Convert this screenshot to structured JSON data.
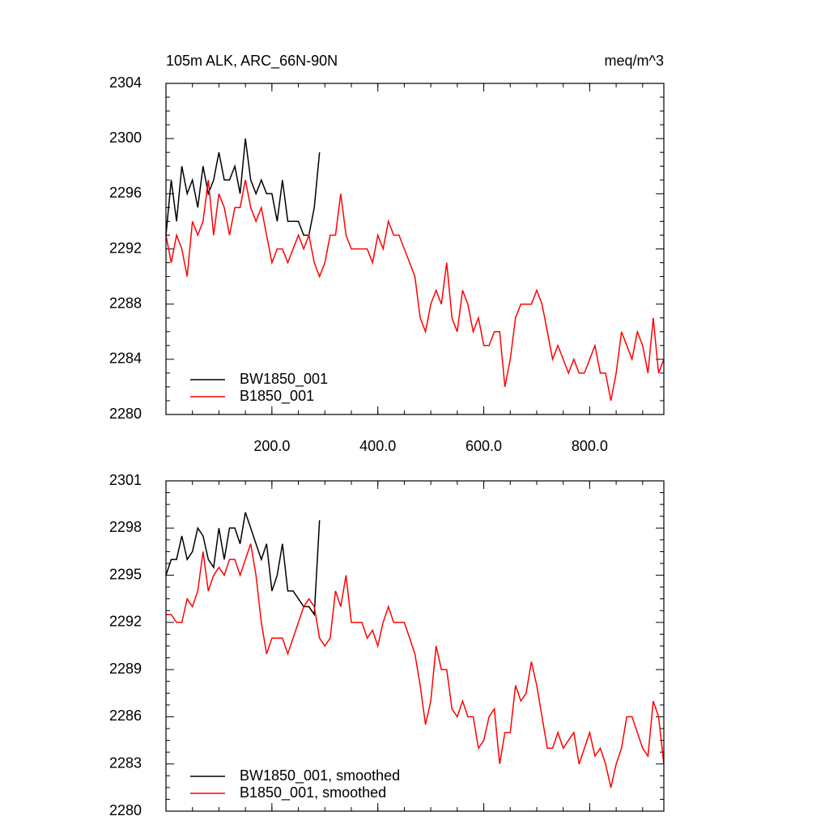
{
  "chart_data": [
    {
      "type": "line",
      "title": "105m ALK, ARC_66N-90N",
      "subtitle": "meq/m^3",
      "xlim": [
        0,
        940
      ],
      "ylim": [
        2280,
        2304
      ],
      "xticks": [
        {
          "value": 200,
          "label": "200.0"
        },
        {
          "value": 400,
          "label": "400.0"
        },
        {
          "value": 600,
          "label": "600.0"
        },
        {
          "value": 800,
          "label": "800.0"
        }
      ],
      "yticks": [
        2280,
        2284,
        2288,
        2292,
        2296,
        2300,
        2304
      ],
      "legend": "lower left",
      "series": [
        {
          "name": "BW1850_001",
          "color": "#000000",
          "x": [
            0,
            10,
            20,
            30,
            40,
            50,
            60,
            70,
            80,
            90,
            100,
            110,
            120,
            130,
            140,
            150,
            160,
            170,
            180,
            190,
            200,
            210,
            220,
            230,
            240,
            250,
            260,
            270,
            280,
            290
          ],
          "values": [
            2293,
            2297,
            2294,
            2298,
            2296,
            2297,
            2295,
            2298,
            2296,
            2297,
            2299,
            2297,
            2297,
            2298,
            2296,
            2300,
            2297,
            2296,
            2297,
            2296,
            2296,
            2294,
            2297,
            2294,
            2294,
            2294,
            2293,
            2293,
            2295,
            2299
          ]
        },
        {
          "name": "B1850_001",
          "color": "#ff0000",
          "x": [
            0,
            10,
            20,
            30,
            40,
            50,
            60,
            70,
            80,
            90,
            100,
            110,
            120,
            130,
            140,
            150,
            160,
            170,
            180,
            190,
            200,
            210,
            220,
            230,
            240,
            250,
            260,
            270,
            280,
            290,
            300,
            310,
            320,
            330,
            340,
            350,
            360,
            370,
            380,
            390,
            400,
            410,
            420,
            430,
            440,
            450,
            460,
            470,
            480,
            490,
            500,
            510,
            520,
            530,
            540,
            550,
            560,
            570,
            580,
            590,
            600,
            610,
            620,
            630,
            640,
            650,
            660,
            670,
            680,
            690,
            700,
            710,
            720,
            730,
            740,
            750,
            760,
            770,
            780,
            790,
            800,
            810,
            820,
            830,
            840,
            850,
            860,
            870,
            880,
            890,
            900,
            910,
            920,
            930,
            940
          ],
          "values": [
            2293,
            2291,
            2293,
            2292,
            2290,
            2294,
            2293,
            2294,
            2297,
            2293,
            2296,
            2295,
            2293,
            2295,
            2295,
            2297,
            2295,
            2294,
            2295,
            2293,
            2291,
            2292,
            2292,
            2291,
            2292,
            2293,
            2292,
            2293,
            2291,
            2290,
            2291,
            2293,
            2293,
            2296,
            2293,
            2292,
            2292,
            2292,
            2292,
            2291,
            2293,
            2292,
            2294,
            2293,
            2293,
            2292,
            2291,
            2290,
            2287,
            2286,
            2288,
            2289,
            2288,
            2291,
            2287,
            2286,
            2289,
            2288,
            2286,
            2287,
            2285,
            2285,
            2286,
            2286,
            2282,
            2284,
            2287,
            2288,
            2288,
            2288,
            2289,
            2288,
            2286,
            2284,
            2285,
            2284,
            2283,
            2284,
            2283,
            2283,
            2284,
            2285,
            2283,
            2283,
            2281,
            2283,
            2286,
            2285,
            2284,
            2286,
            2285,
            2283,
            2287,
            2283,
            2284
          ]
        }
      ]
    },
    {
      "type": "line",
      "xlim": [
        0,
        940
      ],
      "ylim": [
        2280,
        2301
      ],
      "xticks": [
        200,
        400,
        600,
        800
      ],
      "yticks": [
        2280,
        2283,
        2286,
        2289,
        2292,
        2295,
        2298,
        2301
      ],
      "legend": "lower left",
      "series": [
        {
          "name": "BW1850_001, smoothed",
          "color": "#000000",
          "x": [
            0,
            10,
            20,
            30,
            40,
            50,
            60,
            70,
            80,
            90,
            100,
            110,
            120,
            130,
            140,
            150,
            160,
            170,
            180,
            190,
            200,
            210,
            220,
            230,
            240,
            250,
            260,
            270,
            280,
            290
          ],
          "values": [
            2295,
            2296,
            2296,
            2297.5,
            2296,
            2296.5,
            2298,
            2297.5,
            2296,
            2295.5,
            2298,
            2296,
            2298,
            2298,
            2297,
            2299,
            2298,
            2297,
            2296,
            2297,
            2294,
            2295,
            2297,
            2294,
            2294,
            2293.5,
            2293,
            2293,
            2292.5,
            2298.5
          ]
        },
        {
          "name": "B1850_001, smoothed",
          "color": "#ff0000",
          "x": [
            0,
            10,
            20,
            30,
            40,
            50,
            60,
            70,
            80,
            90,
            100,
            110,
            120,
            130,
            140,
            150,
            160,
            170,
            180,
            190,
            200,
            210,
            220,
            230,
            240,
            250,
            260,
            270,
            280,
            290,
            300,
            310,
            320,
            330,
            340,
            350,
            360,
            370,
            380,
            390,
            400,
            410,
            420,
            430,
            440,
            450,
            460,
            470,
            480,
            490,
            500,
            510,
            520,
            530,
            540,
            550,
            560,
            570,
            580,
            590,
            600,
            610,
            620,
            630,
            640,
            650,
            660,
            670,
            680,
            690,
            700,
            710,
            720,
            730,
            740,
            750,
            760,
            770,
            780,
            790,
            800,
            810,
            820,
            830,
            840,
            850,
            860,
            870,
            880,
            890,
            900,
            910,
            920,
            930,
            940
          ],
          "values": [
            2292.5,
            2292.5,
            2292,
            2292,
            2293.5,
            2293,
            2294,
            2296.5,
            2294,
            2295,
            2295.5,
            2295,
            2296,
            2296,
            2295,
            2296,
            2297,
            2295,
            2292,
            2290,
            2291,
            2291,
            2291,
            2290,
            2291,
            2292,
            2293,
            2293.5,
            2293,
            2291,
            2290.5,
            2291,
            2294,
            2293,
            2295,
            2292,
            2292,
            2292,
            2291,
            2291.5,
            2290.5,
            2292,
            2293,
            2292,
            2292,
            2292,
            2291,
            2290,
            2288,
            2285.5,
            2287,
            2290.5,
            2289,
            2289,
            2286.5,
            2286,
            2287,
            2286,
            2286,
            2284,
            2284.5,
            2286,
            2286.5,
            2283,
            2285,
            2285,
            2288,
            2287,
            2287.5,
            2289.5,
            2288,
            2286,
            2284,
            2284,
            2285,
            2284,
            2284.5,
            2285,
            2283,
            2284,
            2285,
            2283.5,
            2284,
            2283,
            2281.5,
            2283,
            2284,
            2286,
            2286,
            2285,
            2284,
            2283.5,
            2287,
            2286,
            2283
          ]
        }
      ]
    }
  ]
}
